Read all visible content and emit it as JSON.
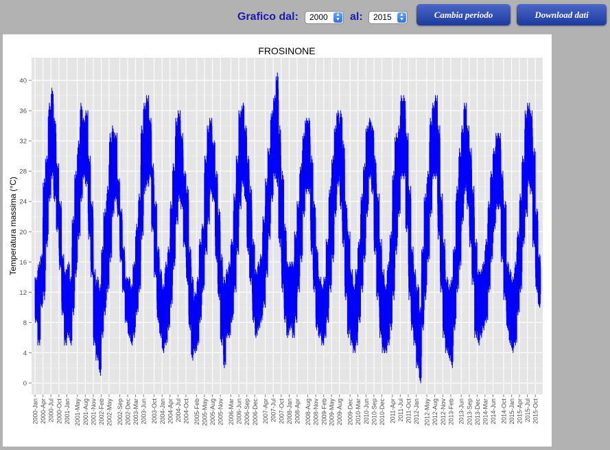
{
  "controls": {
    "from_label": "Grafico dal:",
    "from_value": "2000",
    "to_label": "al:",
    "to_value": "2015",
    "change_button": "Cambia periodo",
    "download_button": "Download dati"
  },
  "colors": {
    "accent": "#1a1ab0",
    "button": "#2a48b0",
    "series": "#0000ff",
    "plot_bg": "#e5e5e5"
  },
  "chart_data": {
    "type": "line",
    "title": "FROSINONE",
    "xlabel": "",
    "ylabel": "Temperatura massima  (°C)",
    "ylim": [
      -1.5,
      43
    ],
    "yticks": [
      0,
      4,
      8,
      12,
      16,
      20,
      24,
      28,
      32,
      36,
      40
    ],
    "grid": true,
    "xlim": [
      "1999-11-22",
      "2015-12-25"
    ],
    "xticks": [
      "2000-Jan",
      "2000-Apr",
      "2000-Jul",
      "2000-Oct",
      "2001-Jan",
      "2001-May",
      "2001-Aug",
      "2001-Nov",
      "2002-Feb",
      "2002-May",
      "2002-Sep",
      "2002-Dec",
      "2003-Mar",
      "2003-Jun",
      "2003-Oct",
      "2004-Jan",
      "2004-Apr",
      "2004-Jul",
      "2004-Oct",
      "2005-Feb",
      "2005-May",
      "2005-Aug",
      "2005-Nov",
      "2006-Mar",
      "2006-Jun",
      "2006-Sep",
      "2006-Dec",
      "2007-Apr",
      "2007-Jul",
      "2007-Oct",
      "2008-Jan",
      "2008-Apr",
      "2008-Aug",
      "2008-Nov",
      "2009-Feb",
      "2009-May",
      "2009-Aug",
      "2009-Dec",
      "2010-Mar",
      "2010-Jun",
      "2010-Sep",
      "2010-Dec",
      "2011-Apr",
      "2011-Jul",
      "2011-Oct",
      "2012-Jan",
      "2012-May",
      "2012-Aug",
      "2012-Nov",
      "2013-Feb",
      "2013-Jun",
      "2013-Sep",
      "2013-Dec",
      "2014-Mar",
      "2014-Jun",
      "2014-Oct",
      "2015-Jan",
      "2015-Apr",
      "2015-Jul",
      "2015-Oct"
    ],
    "series": [
      {
        "name": "",
        "x": [
          "2000-01-01",
          "2000-02-01",
          "2000-03-01",
          "2000-04-01",
          "2000-05-01",
          "2000-06-01",
          "2000-07-01",
          "2000-08-01",
          "2000-09-01",
          "2000-10-01",
          "2000-11-01",
          "2000-12-01",
          "2001-01-01",
          "2001-02-01",
          "2001-03-01",
          "2001-04-01",
          "2001-05-01",
          "2001-06-01",
          "2001-07-01",
          "2001-08-01",
          "2001-09-01",
          "2001-10-01",
          "2001-11-01",
          "2001-12-01",
          "2002-01-01",
          "2002-02-01",
          "2002-03-01",
          "2002-04-01",
          "2002-05-01",
          "2002-06-01",
          "2002-07-01",
          "2002-08-01",
          "2002-09-01",
          "2002-10-01",
          "2002-11-01",
          "2002-12-01",
          "2003-01-01",
          "2003-02-01",
          "2003-03-01",
          "2003-04-01",
          "2003-05-01",
          "2003-06-01",
          "2003-07-01",
          "2003-08-01",
          "2003-09-01",
          "2003-10-01",
          "2003-11-01",
          "2003-12-01",
          "2004-01-01",
          "2004-02-01",
          "2004-03-01",
          "2004-04-01",
          "2004-05-01",
          "2004-06-01",
          "2004-07-01",
          "2004-08-01",
          "2004-09-01",
          "2004-10-01",
          "2004-11-01",
          "2004-12-01",
          "2005-01-01",
          "2005-02-01",
          "2005-03-01",
          "2005-04-01",
          "2005-05-01",
          "2005-06-01",
          "2005-07-01",
          "2005-08-01",
          "2005-09-01",
          "2005-10-01",
          "2005-11-01",
          "2005-12-01",
          "2006-01-01",
          "2006-02-01",
          "2006-03-01",
          "2006-04-01",
          "2006-05-01",
          "2006-06-01",
          "2006-07-01",
          "2006-08-01",
          "2006-09-01",
          "2006-10-01",
          "2006-11-01",
          "2006-12-01",
          "2007-01-01",
          "2007-02-01",
          "2007-03-01",
          "2007-04-01",
          "2007-05-01",
          "2007-06-01",
          "2007-07-01",
          "2007-08-01",
          "2007-09-01",
          "2007-10-01",
          "2007-11-01",
          "2007-12-01",
          "2008-01-01",
          "2008-02-01",
          "2008-03-01",
          "2008-04-01",
          "2008-05-01",
          "2008-06-01",
          "2008-07-01",
          "2008-08-01",
          "2008-09-01",
          "2008-10-01",
          "2008-11-01",
          "2008-12-01",
          "2009-01-01",
          "2009-02-01",
          "2009-03-01",
          "2009-04-01",
          "2009-05-01",
          "2009-06-01",
          "2009-07-01",
          "2009-08-01",
          "2009-09-01",
          "2009-10-01",
          "2009-11-01",
          "2009-12-01",
          "2010-01-01",
          "2010-02-01",
          "2010-03-01",
          "2010-04-01",
          "2010-05-01",
          "2010-06-01",
          "2010-07-01",
          "2010-08-01",
          "2010-09-01",
          "2010-10-01",
          "2010-11-01",
          "2010-12-01",
          "2011-01-01",
          "2011-02-01",
          "2011-03-01",
          "2011-04-01",
          "2011-05-01",
          "2011-06-01",
          "2011-07-01",
          "2011-08-01",
          "2011-09-01",
          "2011-10-01",
          "2011-11-01",
          "2011-12-01",
          "2012-01-01",
          "2012-02-01",
          "2012-03-01",
          "2012-04-01",
          "2012-05-01",
          "2012-06-01",
          "2012-07-01",
          "2012-08-01",
          "2012-09-01",
          "2012-10-01",
          "2012-11-01",
          "2012-12-01",
          "2013-01-01",
          "2013-02-01",
          "2013-03-01",
          "2013-04-01",
          "2013-05-01",
          "2013-06-01",
          "2013-07-01",
          "2013-08-01",
          "2013-09-01",
          "2013-10-01",
          "2013-11-01",
          "2013-12-01",
          "2014-01-01",
          "2014-02-01",
          "2014-03-01",
          "2014-04-01",
          "2014-05-01",
          "2014-06-01",
          "2014-07-01",
          "2014-08-01",
          "2014-09-01",
          "2014-10-01",
          "2014-11-01",
          "2014-12-01",
          "2015-01-01",
          "2015-02-01",
          "2015-03-01",
          "2015-04-01",
          "2015-05-01",
          "2015-06-01",
          "2015-07-01",
          "2015-08-01",
          "2015-09-01",
          "2015-10-01",
          "2015-11-01"
        ],
        "max": [
          14,
          16,
          17,
          27,
          30,
          37,
          39,
          35,
          29,
          24,
          17,
          15,
          16,
          14,
          22,
          28,
          32,
          37,
          35,
          36,
          30,
          24,
          15,
          14,
          13,
          18,
          23,
          26,
          33,
          34,
          33,
          27,
          23,
          18,
          14,
          14,
          13,
          16,
          21,
          25,
          34,
          37,
          38,
          35,
          29,
          24,
          18,
          15,
          13,
          16,
          18,
          24,
          29,
          35,
          36,
          33,
          28,
          26,
          18,
          14,
          12,
          14,
          19,
          21,
          30,
          34,
          35,
          32,
          28,
          23,
          17,
          14,
          15,
          16,
          19,
          25,
          30,
          36,
          37,
          34,
          30,
          26,
          19,
          15,
          16,
          17,
          22,
          27,
          31,
          36,
          38,
          41,
          34,
          28,
          21,
          16,
          16,
          16,
          20,
          24,
          29,
          33,
          35,
          35,
          30,
          24,
          18,
          14,
          13,
          14,
          19,
          26,
          30,
          34,
          36,
          36,
          32,
          24,
          20,
          15,
          13,
          15,
          19,
          25,
          29,
          34,
          35,
          34,
          30,
          25,
          19,
          15,
          13,
          16,
          20,
          28,
          33,
          34,
          38,
          38,
          33,
          26,
          18,
          15,
          13,
          10,
          18,
          25,
          28,
          35,
          37,
          38,
          34,
          25,
          19,
          14,
          13,
          14,
          18,
          26,
          31,
          34,
          37,
          34,
          31,
          26,
          19,
          15,
          15,
          16,
          19,
          24,
          28,
          31,
          33,
          33,
          28,
          24,
          16,
          15,
          14,
          16,
          20,
          25,
          30,
          36,
          37,
          36,
          31,
          23,
          17
        ],
        "min": [
          8,
          5,
          10,
          11,
          18,
          24,
          27,
          24,
          20,
          15,
          9,
          5,
          6,
          5,
          9,
          14,
          19,
          24,
          27,
          26,
          19,
          14,
          5,
          3,
          1,
          6,
          9,
          12,
          16,
          22,
          24,
          22,
          16,
          12,
          8,
          6,
          5,
          6,
          9,
          12,
          19,
          25,
          26,
          27,
          20,
          14,
          8,
          6,
          4,
          5,
          7,
          10,
          15,
          21,
          24,
          23,
          18,
          13,
          7,
          3,
          4,
          5,
          8,
          12,
          17,
          21,
          25,
          24,
          16,
          11,
          5,
          2,
          6,
          6,
          8,
          12,
          17,
          23,
          26,
          24,
          17,
          13,
          8,
          6,
          7,
          8,
          10,
          14,
          19,
          24,
          27,
          26,
          18,
          12,
          8,
          6,
          7,
          6,
          8,
          12,
          16,
          22,
          25,
          25,
          17,
          12,
          7,
          6,
          5,
          6,
          8,
          12,
          16,
          22,
          26,
          23,
          18,
          11,
          6,
          5,
          4,
          5,
          8,
          12,
          16,
          22,
          27,
          25,
          17,
          11,
          6,
          4,
          4,
          5,
          7,
          11,
          17,
          22,
          27,
          27,
          20,
          11,
          7,
          5,
          2,
          0,
          7,
          11,
          16,
          22,
          27,
          27,
          19,
          12,
          6,
          4,
          3,
          2,
          7,
          12,
          15,
          21,
          25,
          23,
          18,
          13,
          6,
          5,
          6,
          7,
          8,
          12,
          16,
          20,
          23,
          23,
          16,
          11,
          7,
          5,
          4,
          5,
          9,
          12,
          18,
          22,
          26,
          25,
          18,
          12,
          10
        ]
      }
    ]
  }
}
